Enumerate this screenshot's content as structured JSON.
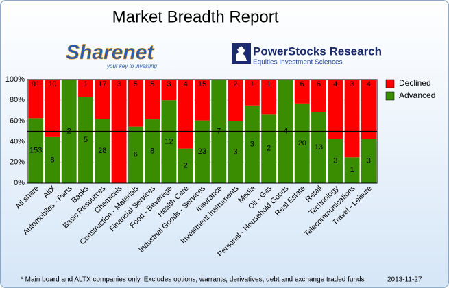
{
  "chart_data": {
    "type": "bar",
    "stacking": "percent",
    "title": "Market Breadth Report",
    "logos": {
      "left": {
        "name": "Sharenet",
        "tagline": "your key to investing"
      },
      "right": {
        "name": "PowerStocks  Research",
        "tagline": "Equities Investment Sciences"
      }
    },
    "categories": [
      "All share",
      "AltX",
      "Automobiles - Parts",
      "Banks",
      "Basic Resources",
      "Chemicals",
      "Construction - Materials",
      "Financial Services",
      "Food - Beverage",
      "Health Care",
      "Industrial Goods - Services",
      "Insurance",
      "Investment Instruments",
      "Media",
      "Oil - Gas",
      "Personal - Household Goods",
      "Real Estate",
      "Retail",
      "Technology",
      "Telecommunications",
      "Travel - Leisure"
    ],
    "series": [
      {
        "name": "Declined",
        "color": "#ff0000",
        "values": [
          91,
          10,
          null,
          1,
          17,
          3,
          5,
          5,
          3,
          4,
          15,
          null,
          2,
          1,
          1,
          null,
          6,
          6,
          4,
          3,
          4
        ]
      },
      {
        "name": "Advanced",
        "color": "#3a8c00",
        "values": [
          153,
          8,
          2,
          5,
          28,
          null,
          6,
          8,
          12,
          2,
          23,
          7,
          3,
          3,
          2,
          4,
          20,
          13,
          3,
          1,
          3
        ]
      }
    ],
    "ylim": [
      0,
      100
    ],
    "yticks": [
      {
        "value": 0,
        "label": "0%"
      },
      {
        "value": 20,
        "label": "20%"
      },
      {
        "value": 40,
        "label": "40%"
      },
      {
        "value": 60,
        "label": "60%"
      },
      {
        "value": 80,
        "label": "80%"
      },
      {
        "value": 100,
        "label": "100%"
      }
    ],
    "reference_line": 50,
    "grid": true,
    "legend": "right",
    "footnote": "* Main board and ALTX companies only. Excludes options, warrants, derivatives, debt and exchange traded funds",
    "date": "2013-11-27"
  }
}
